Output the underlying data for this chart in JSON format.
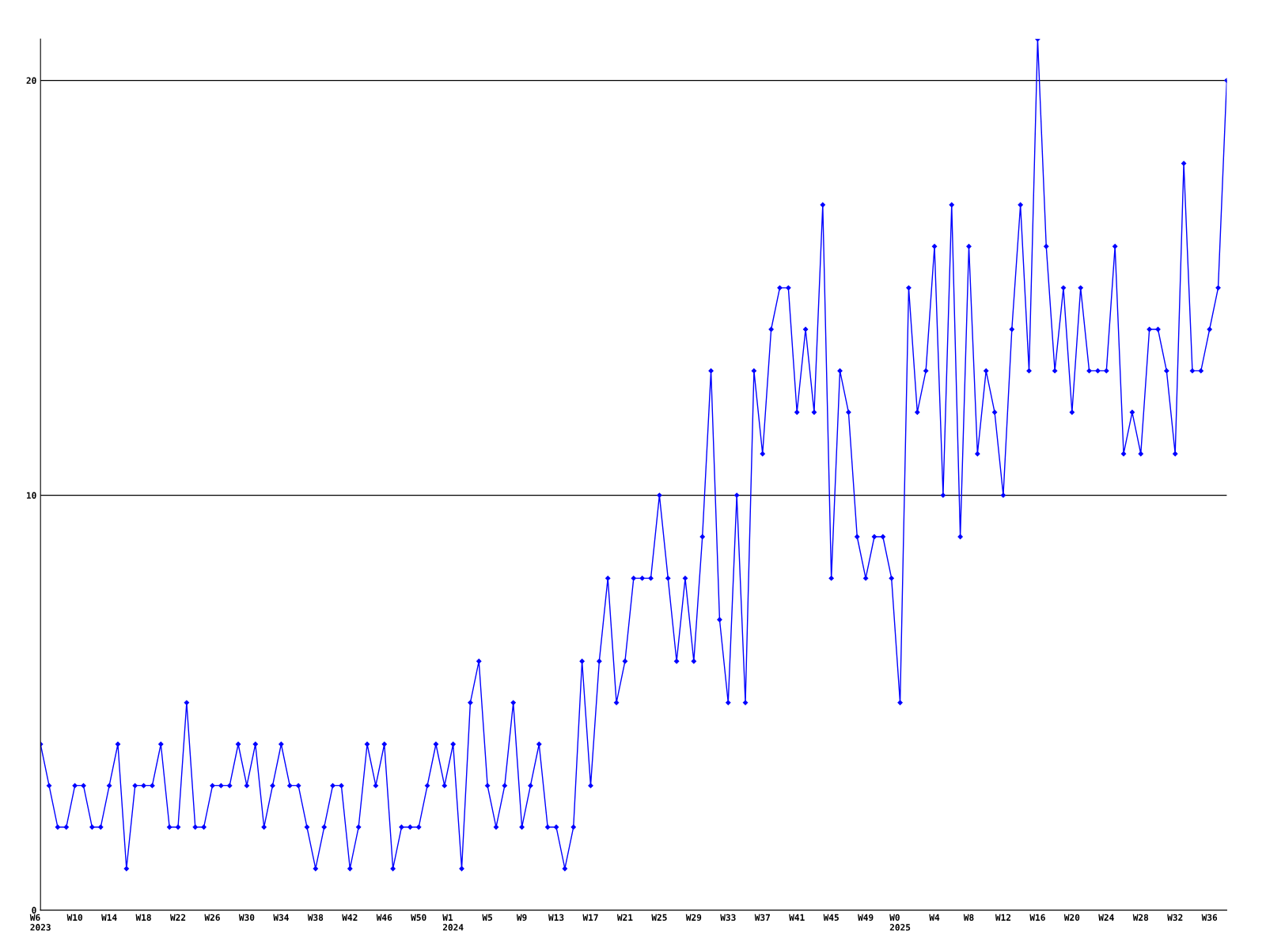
{
  "chart_data": {
    "type": "line",
    "categories": [
      "W6\n2023",
      null,
      null,
      null,
      "W10",
      null,
      null,
      null,
      "W14",
      null,
      null,
      null,
      "W18",
      null,
      null,
      null,
      "W22",
      null,
      null,
      null,
      "W26",
      null,
      null,
      null,
      "W30",
      null,
      null,
      null,
      "W34",
      null,
      null,
      null,
      "W38",
      null,
      null,
      null,
      "W42",
      null,
      null,
      null,
      "W46",
      null,
      null,
      null,
      "W50",
      null,
      null,
      null,
      "W1\n2024",
      null,
      null,
      null,
      "W5",
      null,
      null,
      null,
      "W9",
      null,
      null,
      null,
      "W13",
      null,
      null,
      null,
      "W17",
      null,
      null,
      null,
      "W21",
      null,
      null,
      null,
      "W25",
      null,
      null,
      null,
      "W29",
      null,
      null,
      null,
      "W33",
      null,
      null,
      null,
      "W37",
      null,
      null,
      null,
      "W41",
      null,
      null,
      null,
      "W45",
      null,
      null,
      null,
      "W49",
      null,
      null,
      null,
      "W0\n2025",
      null,
      null,
      null,
      "W4",
      null,
      null,
      null,
      "W8",
      null,
      null,
      null,
      "W12",
      null,
      null,
      null,
      "W16",
      null,
      null,
      null,
      "W20",
      null,
      null,
      null,
      "W24",
      null,
      null,
      null,
      "W28",
      null,
      null,
      null,
      "W32",
      null,
      null,
      null,
      "W36",
      null,
      null
    ],
    "series": [
      {
        "color": "#0000ff",
        "values": [
          4,
          3,
          2,
          2,
          3,
          3,
          2,
          2,
          3,
          4,
          1,
          3,
          3,
          3,
          4,
          2,
          2,
          5,
          2,
          2,
          3,
          3,
          3,
          4,
          3,
          4,
          2,
          3,
          4,
          3,
          3,
          2,
          1,
          2,
          3,
          3,
          1,
          2,
          4,
          3,
          4,
          1,
          2,
          2,
          2,
          3,
          4,
          3,
          4,
          1,
          5,
          6,
          3,
          2,
          3,
          5,
          2,
          3,
          4,
          2,
          2,
          1,
          2,
          6,
          3,
          6,
          8,
          5,
          6,
          8,
          8,
          8,
          10,
          8,
          6,
          8,
          6,
          9,
          13,
          7,
          5,
          10,
          5,
          13,
          11,
          14,
          15,
          15,
          12,
          14,
          12,
          17,
          8,
          13,
          12,
          9,
          8,
          9,
          9,
          8,
          5,
          15,
          12,
          13,
          16,
          10,
          17,
          9,
          16,
          11,
          13,
          12,
          10,
          14,
          17,
          13,
          21,
          16,
          13,
          15,
          12,
          15,
          13,
          13,
          13,
          16,
          11,
          12,
          11,
          14,
          14,
          13,
          11,
          18,
          13,
          13,
          14,
          15,
          20
        ]
      }
    ],
    "ylim": [
      0,
      21
    ],
    "yticks": [
      0,
      10,
      20
    ],
    "grid": "y",
    "marker": "diamond",
    "line_style": "solid",
    "legend": false
  }
}
